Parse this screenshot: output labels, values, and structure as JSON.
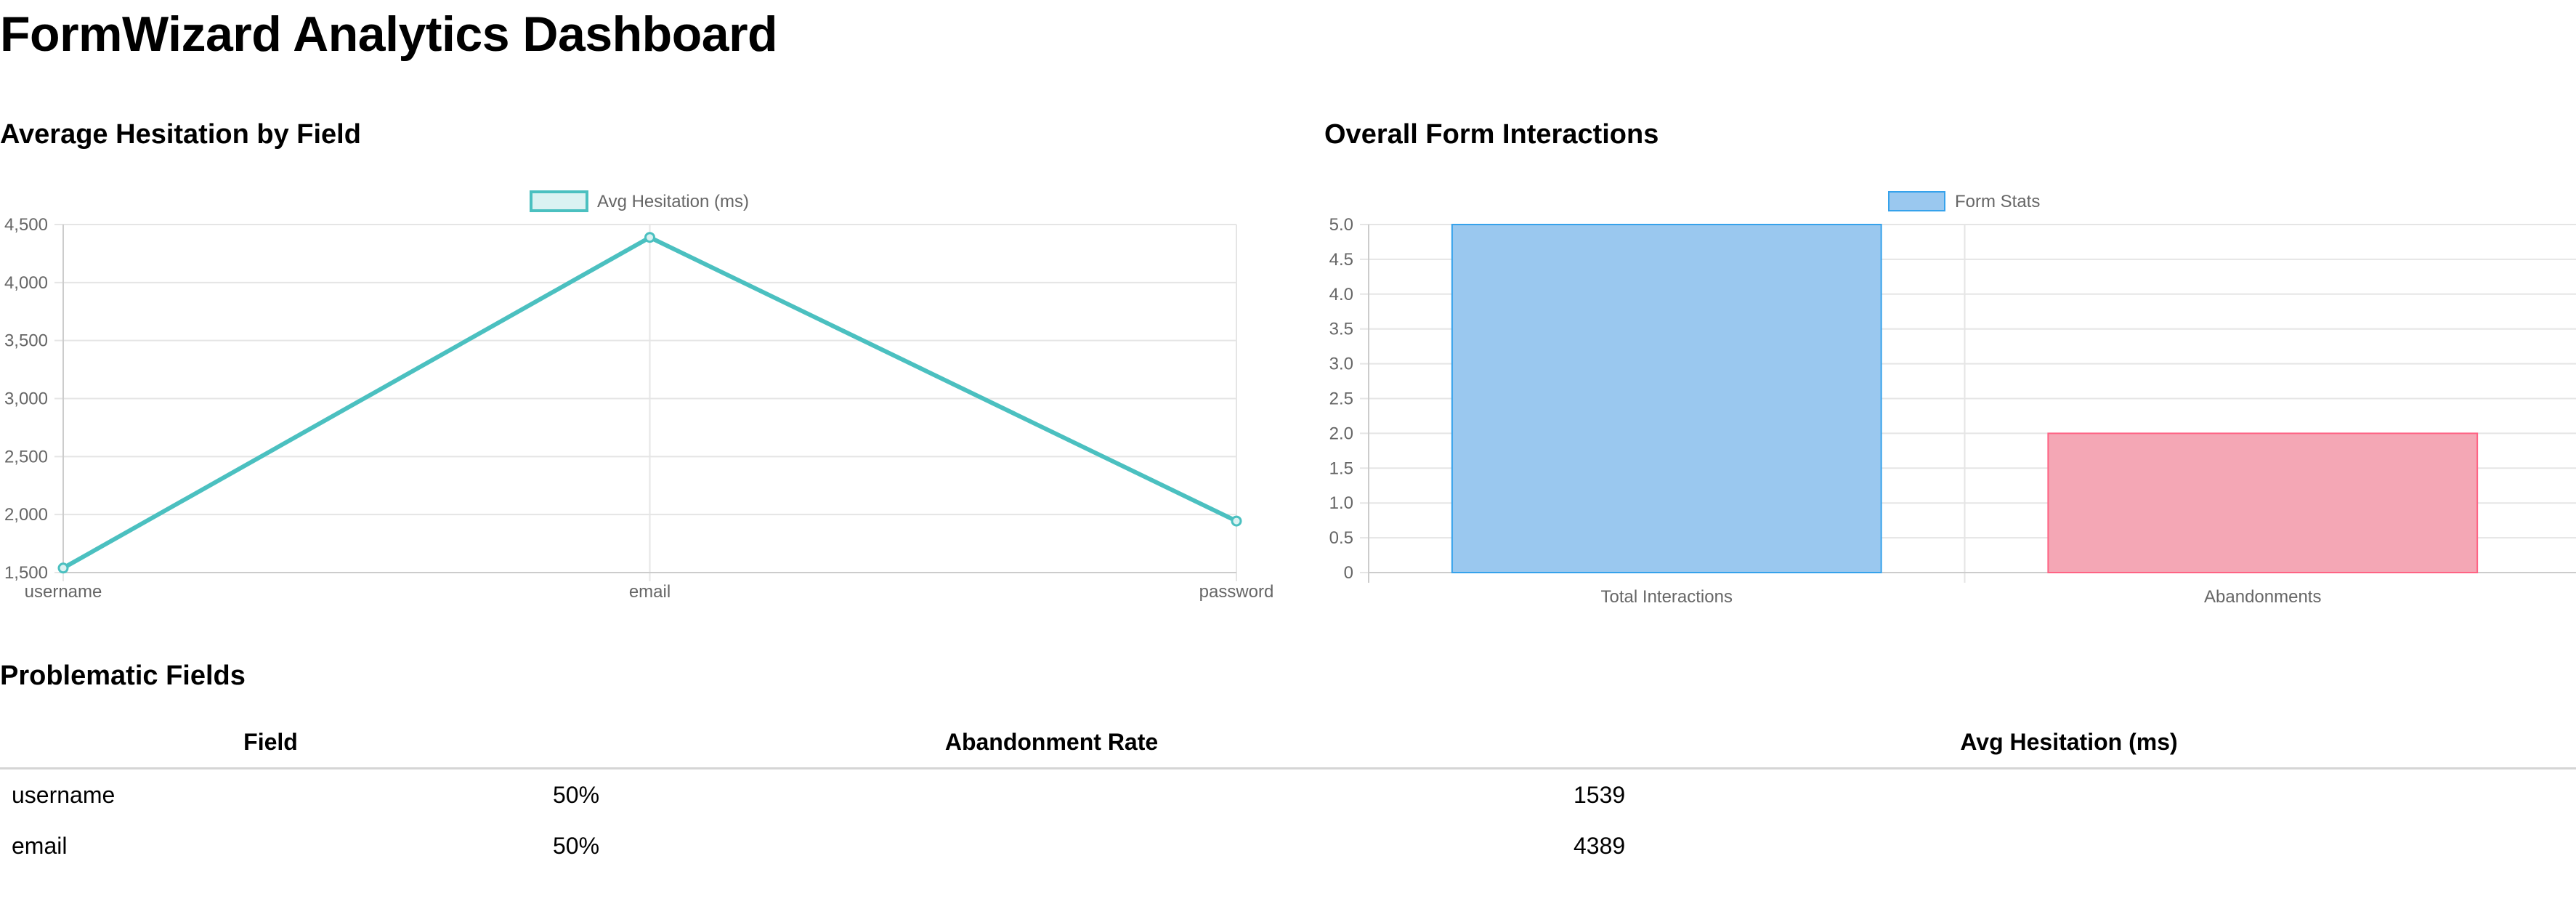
{
  "page": {
    "title": "FormWizard Analytics Dashboard"
  },
  "hesitation_section": {
    "title": "Average Hesitation by Field"
  },
  "interactions_section": {
    "title": "Overall Form Interactions"
  },
  "problematic_section": {
    "title": "Problematic Fields",
    "columns": [
      "Field",
      "Abandonment Rate",
      "Avg Hesitation (ms)"
    ],
    "rows": [
      [
        "username",
        "50%",
        "1539"
      ],
      [
        "email",
        "50%",
        "4389"
      ]
    ]
  },
  "colors": {
    "line": "#4bc0c0",
    "line_fill": "#dbf2f2",
    "bar_blue_fill": "#9ac8ef",
    "bar_blue_border": "#36a2eb",
    "bar_red_fill": "#f4a7b5",
    "bar_red_border": "#ff6384",
    "grid": "#e5e5e5",
    "tick_text": "#666666"
  },
  "chart_data": [
    {
      "type": "line",
      "legend": "Avg Hesitation (ms)",
      "legend_position": "top",
      "categories": [
        "username",
        "email",
        "password"
      ],
      "series": [
        {
          "name": "Avg Hesitation (ms)",
          "values": [
            1539,
            4389,
            1944
          ]
        }
      ],
      "ylim": [
        1500,
        4500
      ],
      "yticks": [
        "4,500",
        "4,000",
        "3,500",
        "3,000",
        "2,500",
        "2,000",
        "1,500"
      ],
      "grid": true
    },
    {
      "type": "bar",
      "legend": "Form Stats",
      "legend_position": "top",
      "categories": [
        "Total Interactions",
        "Abandonments"
      ],
      "series": [
        {
          "name": "Form Stats",
          "values": [
            5,
            2
          ]
        }
      ],
      "ylim": [
        0,
        5
      ],
      "yticks": [
        "5.0",
        "4.5",
        "4.0",
        "3.5",
        "3.0",
        "2.5",
        "2.0",
        "1.5",
        "1.0",
        "0.5",
        "0"
      ],
      "grid": true
    }
  ]
}
